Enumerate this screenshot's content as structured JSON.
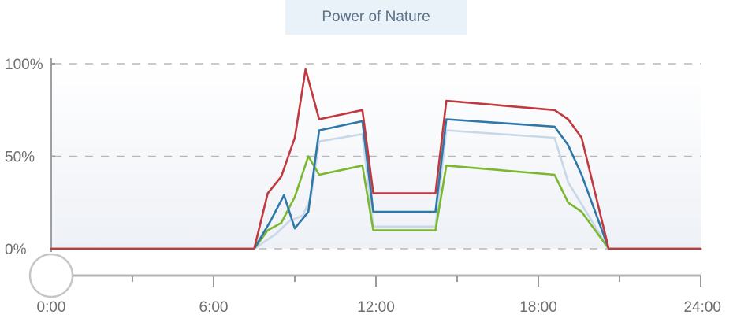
{
  "chart_data": {
    "type": "line",
    "title": "Power of Nature",
    "xlabel": "",
    "ylabel": "",
    "xlim": [
      0,
      24
    ],
    "ylim": [
      0,
      100
    ],
    "x_ticks": [
      {
        "value": 0,
        "label": "0:00"
      },
      {
        "value": 6,
        "label": "6:00"
      },
      {
        "value": 12,
        "label": "12:00"
      },
      {
        "value": 18,
        "label": "18:00"
      },
      {
        "value": 24,
        "label": "24:00"
      }
    ],
    "x_minor_ticks": [
      3,
      9,
      15,
      21
    ],
    "y_ticks": [
      {
        "value": 0,
        "label": "0%"
      },
      {
        "value": 50,
        "label": "50%"
      },
      {
        "value": 100,
        "label": "100%"
      }
    ],
    "grid": true,
    "legend": "none",
    "time_slider": {
      "value": 0
    },
    "series": [
      {
        "color": "#c8d8e8",
        "points": [
          [
            0,
            0
          ],
          [
            7.5,
            0
          ],
          [
            8.3,
            8
          ],
          [
            8.8,
            15
          ],
          [
            9.3,
            18
          ],
          [
            9.6,
            28
          ],
          [
            9.9,
            58
          ],
          [
            11.5,
            62
          ],
          [
            11.9,
            12
          ],
          [
            14.2,
            12
          ],
          [
            14.6,
            64
          ],
          [
            18.6,
            60
          ],
          [
            19.1,
            36
          ],
          [
            20.6,
            0
          ],
          [
            24,
            0
          ]
        ]
      },
      {
        "color": "#7cb82f",
        "points": [
          [
            0,
            0
          ],
          [
            7.5,
            0
          ],
          [
            8.0,
            10
          ],
          [
            8.5,
            14
          ],
          [
            9.0,
            28
          ],
          [
            9.5,
            50
          ],
          [
            9.9,
            40
          ],
          [
            11.5,
            45
          ],
          [
            11.9,
            10
          ],
          [
            14.2,
            10
          ],
          [
            14.6,
            45
          ],
          [
            18.6,
            40
          ],
          [
            19.1,
            25
          ],
          [
            19.6,
            20
          ],
          [
            20.6,
            0
          ],
          [
            24,
            0
          ]
        ]
      },
      {
        "color": "#2e78a8",
        "points": [
          [
            0,
            0
          ],
          [
            7.5,
            0
          ],
          [
            8.1,
            15
          ],
          [
            8.6,
            29
          ],
          [
            9.0,
            11
          ],
          [
            9.5,
            20
          ],
          [
            9.9,
            64
          ],
          [
            11.5,
            69
          ],
          [
            11.9,
            20
          ],
          [
            14.2,
            20
          ],
          [
            14.6,
            70
          ],
          [
            18.6,
            66
          ],
          [
            19.1,
            56
          ],
          [
            19.6,
            40
          ],
          [
            20.6,
            0
          ],
          [
            24,
            0
          ]
        ]
      },
      {
        "color": "#c0393f",
        "points": [
          [
            0,
            0
          ],
          [
            7.5,
            0
          ],
          [
            8.0,
            30
          ],
          [
            8.5,
            39
          ],
          [
            9.0,
            60
          ],
          [
            9.4,
            97
          ],
          [
            9.9,
            70
          ],
          [
            11.5,
            75
          ],
          [
            11.9,
            30
          ],
          [
            14.2,
            30
          ],
          [
            14.6,
            80
          ],
          [
            18.6,
            75
          ],
          [
            19.1,
            70
          ],
          [
            19.6,
            60
          ],
          [
            20.6,
            0
          ],
          [
            24,
            0
          ]
        ]
      }
    ]
  }
}
